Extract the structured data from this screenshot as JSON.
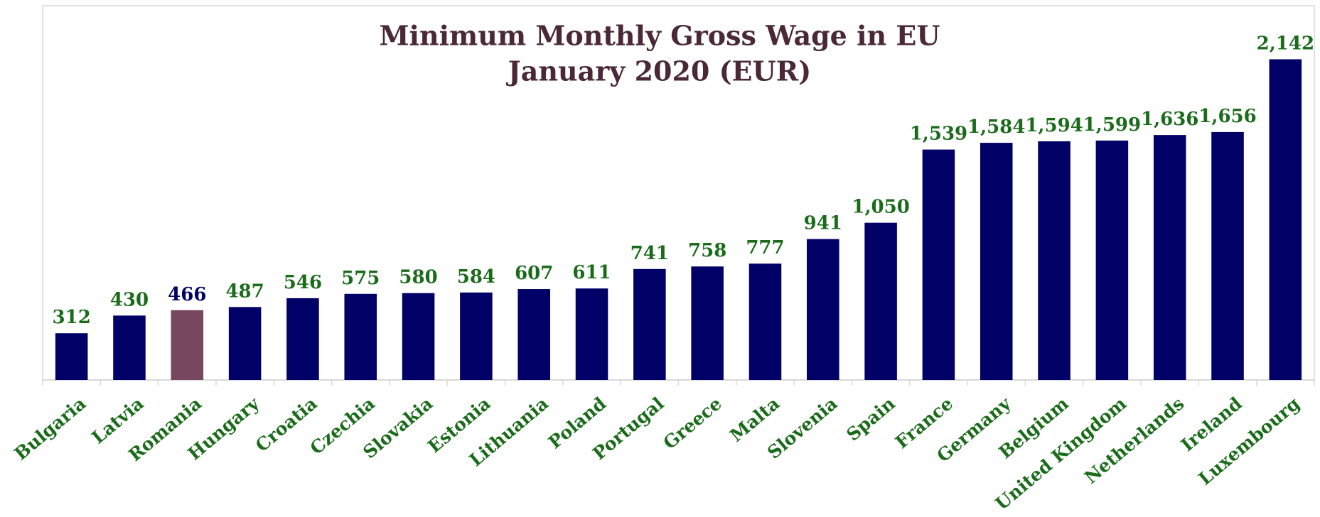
{
  "chart_data": {
    "type": "bar",
    "title": "Minimum Monthly Gross Wage in EU",
    "subtitle": "January 2020 (EUR)",
    "categories": [
      "Bulgaria",
      "Latvia",
      "Romania",
      "Hungary",
      "Croatia",
      "Czechia",
      "Slovakia",
      "Estonia",
      "Lithuania",
      "Poland",
      "Portugal",
      "Greece",
      "Malta",
      "Slovenia",
      "Spain",
      "France",
      "Germany",
      "Belgium",
      "United Kingdom",
      "Netherlands",
      "Ireland",
      "Luxembourg"
    ],
    "values": [
      312,
      430,
      466,
      487,
      546,
      575,
      580,
      584,
      607,
      611,
      741,
      758,
      777,
      941,
      1050,
      1539,
      1584,
      1594,
      1599,
      1636,
      1656,
      2142
    ],
    "value_labels": [
      "312",
      "430",
      "466",
      "487",
      "546",
      "575",
      "580",
      "584",
      "607",
      "611",
      "741",
      "758",
      "777",
      "941",
      "1,050",
      "1,539",
      "1,584",
      "1,594",
      "1,599",
      "1,636",
      "1,656",
      "2,142"
    ],
    "colors": [
      "#000066",
      "#000066",
      "#76475f",
      "#000066",
      "#000066",
      "#000066",
      "#000066",
      "#000066",
      "#000066",
      "#000066",
      "#000066",
      "#000066",
      "#000066",
      "#000066",
      "#000066",
      "#000066",
      "#000066",
      "#000066",
      "#000066",
      "#000066",
      "#000066",
      "#000066"
    ],
    "label_colors": [
      "#1a6b1a",
      "#1a6b1a",
      "#000066",
      "#1a6b1a",
      "#1a6b1a",
      "#1a6b1a",
      "#1a6b1a",
      "#1a6b1a",
      "#1a6b1a",
      "#1a6b1a",
      "#1a6b1a",
      "#1a6b1a",
      "#1a6b1a",
      "#1a6b1a",
      "#1a6b1a",
      "#1a6b1a",
      "#1a6b1a",
      "#1a6b1a",
      "#1a6b1a",
      "#1a6b1a",
      "#1a6b1a",
      "#1a6b1a"
    ],
    "ylim": [
      0,
      2500
    ],
    "grid": false
  }
}
